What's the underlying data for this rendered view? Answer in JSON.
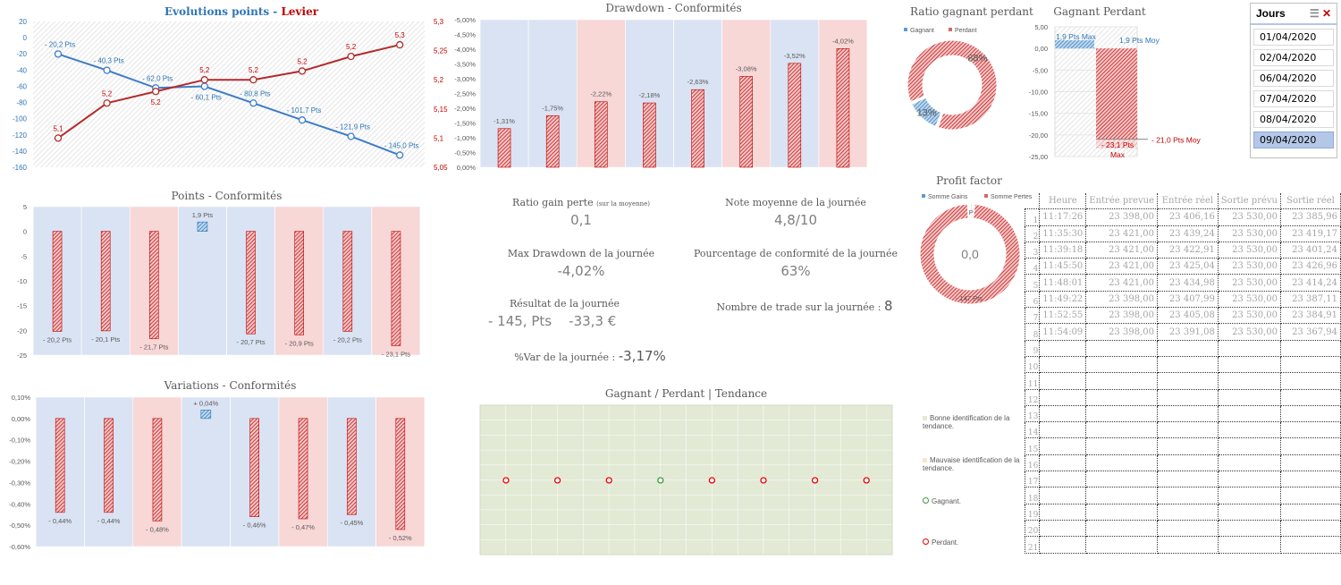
{
  "colors": {
    "blue": "#2e75b6",
    "red": "#c00000",
    "blue_band": "#dae3f3",
    "red_band": "#f8d7d7",
    "green_bg": "#e2ead6"
  },
  "kpis": {
    "ratio_label": "Ratio gain perte",
    "ratio_note": "(sur la moyenne)",
    "ratio_value": "0,1",
    "note_label": "Note moyenne de la journée",
    "note_value": "4,8/10",
    "dd_label": "Max Drawdown de la journée",
    "dd_value": "-4,02%",
    "conf_label": "Pourcentage de conformité de la journée",
    "conf_value": "63%",
    "res_label": "Résultat de la journée",
    "res_pts": "- 145, Pts",
    "res_eur": "-33,3 €",
    "trades_label": "Nombre de trade sur la journée :",
    "trades_value": "8",
    "var_label": "%Var de la journée :",
    "var_value": "-3,17%"
  },
  "slicer": {
    "title": "Jours",
    "items": [
      "01/04/2020",
      "02/04/2020",
      "06/04/2020",
      "07/04/2020",
      "08/04/2020",
      "09/04/2020"
    ],
    "selected": "09/04/2020"
  },
  "table": {
    "headers": [
      "Heure",
      "Entrée prevue",
      "Entrée réel",
      "Sortie prévu",
      "Sortie réel"
    ],
    "rows": [
      [
        "11:17:26",
        "23 398,00",
        "23 406,16",
        "23 530,00",
        "23 385,96"
      ],
      [
        "11:35:30",
        "23 421,00",
        "23 439,24",
        "23 530,00",
        "23 419,17"
      ],
      [
        "11:39:18",
        "23 421,00",
        "23 422,91",
        "23 530,00",
        "23 401,24"
      ],
      [
        "11:45:50",
        "23 421,00",
        "23 425,04",
        "23 530,00",
        "23 426,96"
      ],
      [
        "11:48:01",
        "23 421,00",
        "23 434,98",
        "23 530,00",
        "23 414,24"
      ],
      [
        "11:49:22",
        "23 398,00",
        "23 407,99",
        "23 530,00",
        "23 387,11"
      ],
      [
        "11:52:55",
        "23 398,00",
        "23 405,08",
        "23 530,00",
        "23 384,91"
      ],
      [
        "11:54:09",
        "23 398,00",
        "23 391,08",
        "23 530,00",
        "23 367,94"
      ]
    ],
    "row_count": 21
  },
  "legend": {
    "good": "Bonne identification de la tendance.",
    "bad": "Mauvaise identification de la tendance.",
    "win": "Gagnant.",
    "lose": "Perdant."
  },
  "chart_data": [
    {
      "id": "evolution",
      "type": "line",
      "title_a": "Evolutions points",
      "title_sep": " - ",
      "title_b": "Levier",
      "yticks": [
        "20",
        "0",
        "-20",
        "-40",
        "-60",
        "-80",
        "-100",
        "-120",
        "-140",
        "-160"
      ],
      "ylim": [
        -160,
        20
      ],
      "y2ticks": [
        "5,3",
        "5,25",
        "5,2",
        "5,15",
        "5,1",
        "5,05"
      ],
      "y2lim": [
        5.05,
        5.3
      ],
      "series": [
        {
          "axis": "left",
          "values": [
            -20.2,
            -40.3,
            -62.0,
            -60.1,
            -80.8,
            -101.7,
            -121.9,
            -145.0
          ],
          "labels": [
            "- 20,2 Pts",
            "- 40,3 Pts",
            "- 62,0 Pts",
            "- 60,1 Pts",
            "- 80,8 Pts",
            "- 101,7 Pts",
            "- 121,9 Pts",
            "- 145,0 Pts"
          ]
        },
        {
          "axis": "right",
          "values": [
            5.1,
            5.16,
            5.18,
            5.2,
            5.2,
            5.215,
            5.24,
            5.26
          ],
          "labels": [
            "5,1",
            "5,2",
            "5,2",
            "5,2",
            "5,2",
            "5,2",
            "5,2",
            "5,3"
          ]
        }
      ]
    },
    {
      "id": "drawdown",
      "type": "bar",
      "title": "Drawdown - Conformités",
      "yticks": [
        "-5,00%",
        "-4,50%",
        "-4,00%",
        "-3,50%",
        "-3,00%",
        "-2,50%",
        "-2,00%",
        "-1,50%",
        "-1,00%",
        "-0,50%",
        "0,00%"
      ],
      "ylim": [
        0,
        -5
      ],
      "values": [
        -1.31,
        -1.75,
        -2.22,
        -2.18,
        -2.63,
        -3.08,
        -3.52,
        -4.02
      ],
      "labels": [
        "-1,31%",
        "-1,75%",
        "-2,22%",
        "-2,18%",
        "-2,63%",
        "-3,08%",
        "-3,52%",
        "-4,02%"
      ],
      "bands": [
        "b",
        "b",
        "r",
        "b",
        "b",
        "r",
        "b",
        "r"
      ]
    },
    {
      "id": "points",
      "type": "bar",
      "title": "Points - Conformités",
      "yticks": [
        "5",
        "0",
        "-5",
        "-10",
        "-15",
        "-20",
        "-25"
      ],
      "ylim": [
        -25,
        5
      ],
      "values": [
        -20.2,
        -20.1,
        -21.7,
        1.9,
        -20.7,
        -20.9,
        -20.2,
        -23.1
      ],
      "labels": [
        "- 20,2 Pts",
        "- 20,1 Pts",
        "- 21,7 Pts",
        "1,9 Pts",
        "- 20,7 Pts",
        "- 20,9 Pts",
        "- 20,2 Pts",
        "- 23,1 Pts"
      ],
      "bands": [
        "b",
        "b",
        "r",
        "b",
        "b",
        "r",
        "b",
        "r"
      ]
    },
    {
      "id": "variations",
      "type": "bar",
      "title": "Variations - Conformités",
      "yticks": [
        "0,10%",
        "0,00%",
        "-0,10%",
        "-0,20%",
        "-0,30%",
        "-0,40%",
        "-0,50%",
        "-0,60%"
      ],
      "ylim": [
        -0.6,
        0.1
      ],
      "values": [
        -0.44,
        -0.44,
        -0.48,
        0.04,
        -0.46,
        -0.47,
        -0.45,
        -0.52
      ],
      "labels": [
        "- 0,44%",
        "- 0,44%",
        "- 0,48%",
        "+ 0,04%",
        "- 0,46%",
        "- 0,47%",
        "- 0,45%",
        "- 0,52%"
      ],
      "bands": [
        "b",
        "b",
        "r",
        "b",
        "b",
        "r",
        "b",
        "r"
      ]
    },
    {
      "id": "tendance",
      "type": "scatter",
      "title": "Gagnant / Perdant | Tendance",
      "outcomes": [
        "lose",
        "lose",
        "lose",
        "win",
        "lose",
        "lose",
        "lose",
        "lose"
      ]
    },
    {
      "id": "ratio",
      "type": "pie",
      "title": "Ratio gagnant perdant",
      "legend": [
        "Gagnant",
        "Perdant"
      ],
      "values": [
        13,
        88
      ],
      "labels": [
        "13%",
        "88%"
      ]
    },
    {
      "id": "gp",
      "type": "bar",
      "title": "Gagnant Perdant",
      "yticks": [
        "5,00",
        "0,00",
        "-5,00",
        "-10,00",
        "-15,00",
        "-20,00",
        "-25,00"
      ],
      "ylim": [
        -25,
        5
      ],
      "win_max": 1.9,
      "win_avg": 1.9,
      "lose_max": -23.1,
      "lose_avg": -21.0,
      "labels": [
        "1,9 Pts Max",
        "1,9 Pts Moy",
        "- 21,0 Pts Moy",
        "- 23,1 Pts",
        "Max"
      ]
    },
    {
      "id": "profit",
      "type": "pie",
      "title": "Profit factor",
      "legend": [
        "Somme Gains",
        "Somme Pertes"
      ],
      "values": [
        2,
        147
      ],
      "labels": [
        "2 Pts",
        "- 147 Pts"
      ],
      "center": "0,0"
    }
  ]
}
